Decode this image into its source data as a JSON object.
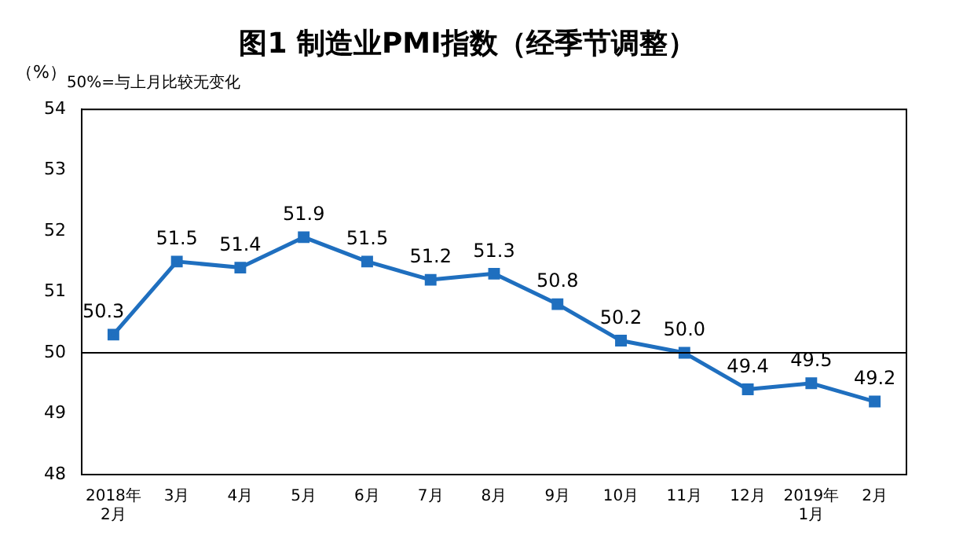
{
  "chart_data": {
    "type": "line",
    "title": "图1 制造业PMI指数（经季节调整）",
    "ylabel": "（%）",
    "annotations": [
      "50%=与上月比较无变化"
    ],
    "categories": [
      "2018年\n2月",
      "3月",
      "4月",
      "5月",
      "6月",
      "7月",
      "8月",
      "9月",
      "10月",
      "11月",
      "12月",
      "2019年\n1月",
      "2月"
    ],
    "series": [
      {
        "color": "#1f6fbf",
        "values": [
          50.3,
          51.5,
          51.4,
          51.9,
          51.5,
          51.2,
          51.3,
          50.8,
          50.2,
          50.0,
          49.4,
          49.5,
          49.2
        ],
        "value_labels": [
          "50.3",
          "51.5",
          "51.4",
          "51.9",
          "51.5",
          "51.2",
          "51.3",
          "50.8",
          "50.2",
          "50.0",
          "49.4",
          "49.5",
          "49.2"
        ]
      }
    ],
    "ylim": [
      48,
      54
    ],
    "yticks": [
      48,
      49,
      50,
      51,
      52,
      53,
      54
    ],
    "ref_lines": [
      {
        "axis": "y",
        "value": 50,
        "color": "#000000"
      }
    ],
    "marker": "square",
    "grid": false,
    "legend": false
  }
}
